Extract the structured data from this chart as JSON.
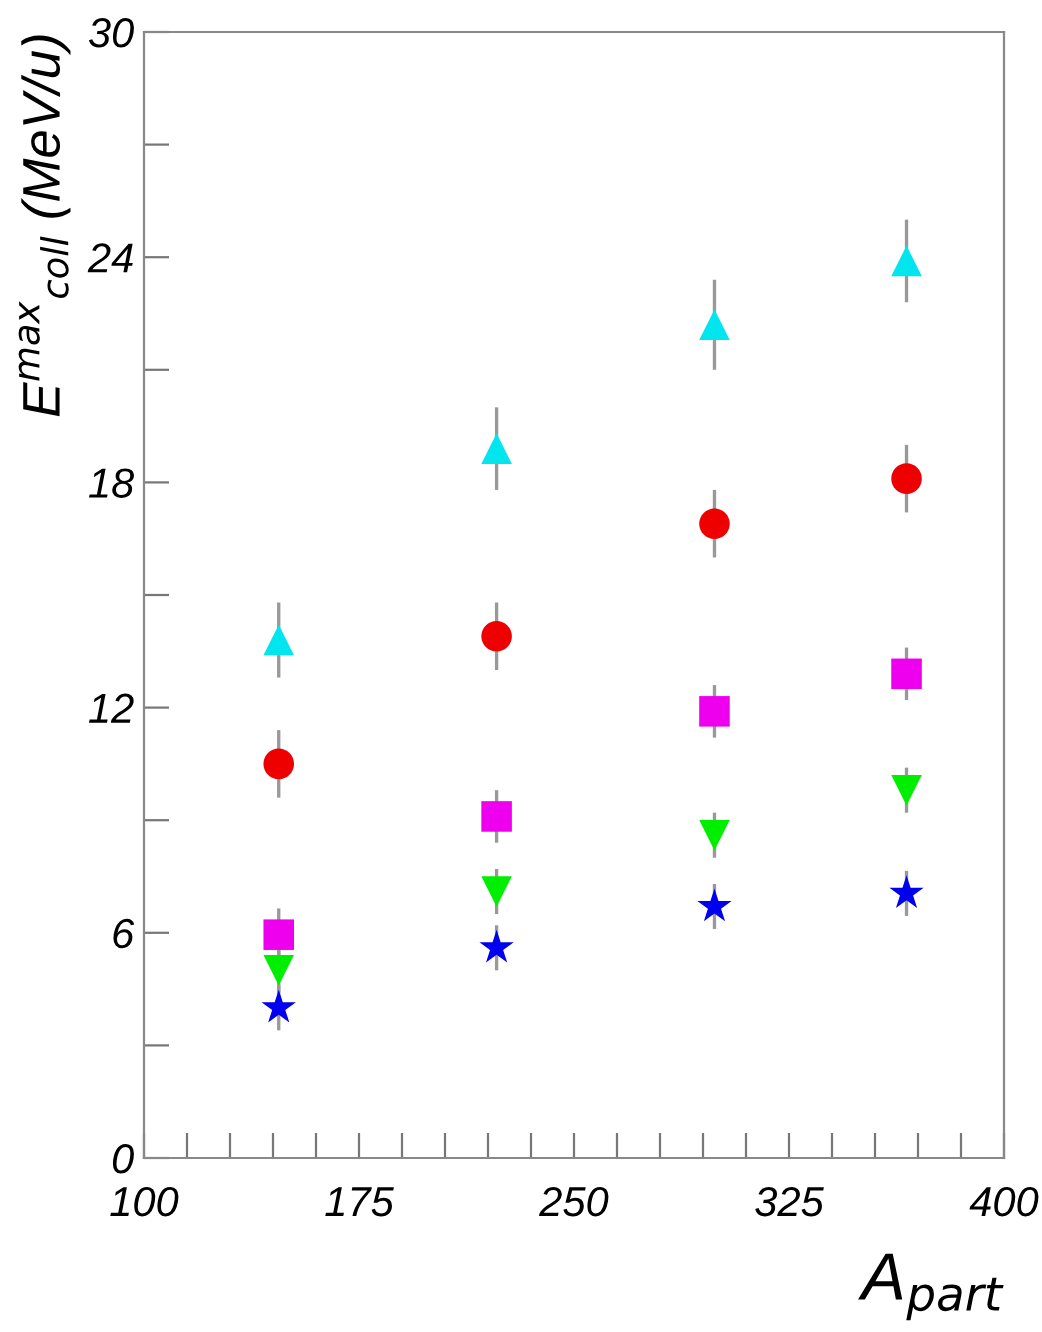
{
  "chart_data": {
    "type": "scatter",
    "xlabel": "A$_{part}$",
    "ylabel": "E$^{max}$$_{coll}$ (MeV/u)",
    "x": [
      147,
      223,
      299,
      366
    ],
    "xlim": [
      100,
      400
    ],
    "ylim": [
      0,
      30
    ],
    "xticks": [
      100,
      {
        "value": 115,
        "label": null
      },
      {
        "value": 130,
        "label": null
      },
      {
        "value": 145,
        "label": null
      },
      {
        "value": 160,
        "label": null
      },
      175,
      {
        "value": 190,
        "label": null
      },
      {
        "value": 205,
        "label": null
      },
      {
        "value": 220,
        "label": null
      },
      {
        "value": 235,
        "label": null
      },
      250,
      {
        "value": 265,
        "label": null
      },
      {
        "value": 280,
        "label": null
      },
      {
        "value": 295,
        "label": null
      },
      {
        "value": 310,
        "label": null
      },
      325,
      {
        "value": 340,
        "label": null
      },
      {
        "value": 355,
        "label": null
      },
      {
        "value": 370,
        "label": null
      },
      {
        "value": 385,
        "label": null
      },
      400
    ],
    "yticks": [
      0,
      {
        "value": 3,
        "label": null
      },
      6,
      {
        "value": 9,
        "label": null
      },
      12,
      {
        "value": 15,
        "label": null
      },
      18,
      {
        "value": 21,
        "label": null
      },
      24,
      {
        "value": 27,
        "label": null
      },
      30
    ],
    "grid": false,
    "legend": false,
    "series": [
      {
        "color": "#00e5ee",
        "marker": "triangle",
        "values": [
          13.8,
          18.9,
          22.2,
          23.9
        ],
        "errors": [
          1.0,
          1.1,
          1.2,
          1.1
        ]
      },
      {
        "color": "#ee0000",
        "marker": "circle",
        "values": [
          10.5,
          13.9,
          16.9,
          18.1
        ],
        "errors": [
          0.9,
          0.9,
          0.9,
          0.9
        ]
      },
      {
        "color": "#ee00ee",
        "marker": "square",
        "values": [
          5.95,
          9.1,
          11.9,
          12.9
        ],
        "errors": [
          0.7,
          0.7,
          0.7,
          0.7
        ]
      },
      {
        "color": "#00ee00",
        "marker": "triangle_down",
        "values": [
          5.0,
          7.1,
          8.6,
          9.8
        ],
        "errors": [
          0.6,
          0.6,
          0.6,
          0.6
        ]
      },
      {
        "color": "#0000ee",
        "marker": "star",
        "values": [
          4.0,
          5.6,
          6.7,
          7.05
        ],
        "errors": [
          0.6,
          0.6,
          0.6,
          0.6
        ]
      }
    ]
  }
}
